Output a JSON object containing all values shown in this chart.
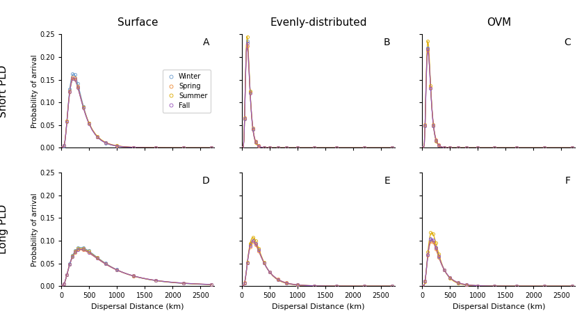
{
  "col_titles": [
    "Surface",
    "Evenly-distributed",
    "OVM"
  ],
  "row_titles": [
    "Short PLD",
    "Long PLD"
  ],
  "panel_labels": [
    [
      "A",
      "B",
      "C"
    ],
    [
      "D",
      "E",
      "F"
    ]
  ],
  "seasons": [
    "Winter",
    "Spring",
    "Summer",
    "Fall"
  ],
  "season_colors": [
    "#6699CC",
    "#EE8833",
    "#DDAA00",
    "#9955BB"
  ],
  "xlim": [
    0,
    2750
  ],
  "ylim": [
    0,
    0.25
  ],
  "xticks": [
    0,
    500,
    1000,
    1500,
    2000,
    2500
  ],
  "yticks": [
    0,
    0.05,
    0.1,
    0.15,
    0.2,
    0.25
  ],
  "xlabel": "Dispersal Distance (km)",
  "ylabel": "Probability of arrival",
  "markersize": 3,
  "linewidth": 0.9,
  "figsize": [
    8.4,
    4.7
  ],
  "dpi": 100
}
